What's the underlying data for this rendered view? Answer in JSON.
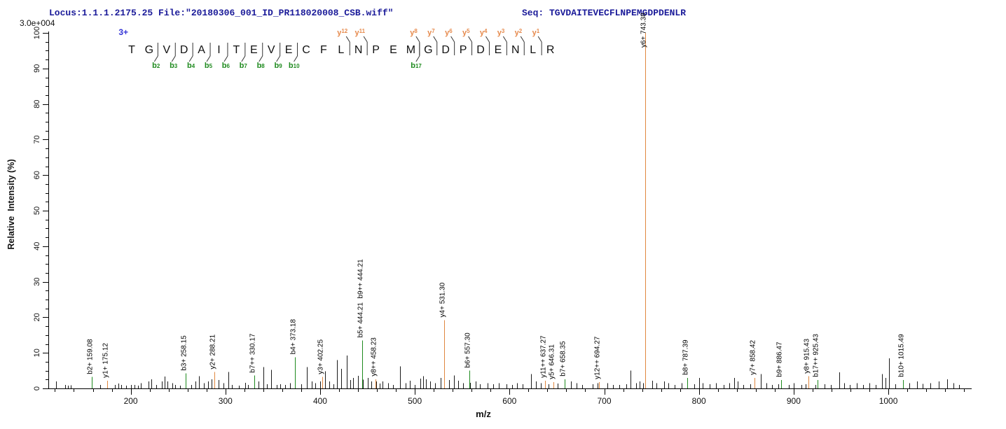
{
  "header": {
    "locus_file": "Locus:1.1.1.2175.25 File:\"20180306_001_ID_PR118020008_CSB.wiff\"",
    "seq_label": "Seq:",
    "seq_value": "TGVDAITEVECFLNPEMGDPDENLR"
  },
  "y_axis": {
    "max_intensity_label": "3.0e+004"
  },
  "peptide": {
    "charge_label": "3+",
    "residues": [
      "T",
      "G",
      "V",
      "D",
      "A",
      "I",
      "T",
      "E",
      "V",
      "E",
      "C",
      "F",
      "L",
      "N",
      "P",
      "E",
      "M",
      "G",
      "D",
      "P",
      "D",
      "E",
      "N",
      "L",
      "R"
    ],
    "b_ions": [
      2,
      3,
      4,
      5,
      6,
      7,
      8,
      9,
      10,
      17
    ],
    "y_ions": [
      12,
      11,
      8,
      7,
      6,
      5,
      4,
      3,
      2,
      1
    ]
  },
  "colors": {
    "b_ion": "#1E8A1E",
    "y_ion": "#E0873F",
    "peak_black": "#1a1a1a",
    "header_blue": "#1a1a99",
    "charge_blue": "#3434d6"
  },
  "chart_data": {
    "type": "bar",
    "subtype": "ms2-stick-spectrum",
    "xlabel": "m/z",
    "ylabel": "Relative  Intensity (%)",
    "xlim": [
      113,
      1088
    ],
    "ylim": [
      0,
      100
    ],
    "x_major_ticks": [
      200,
      300,
      400,
      500,
      600,
      700,
      800,
      900,
      1000
    ],
    "x_minor_step": 20,
    "y_major_ticks": [
      0,
      10,
      20,
      30,
      40,
      50,
      60,
      70,
      80,
      90,
      100
    ],
    "y_minor_step": 2.5,
    "legend": "none",
    "annotated_peaks": [
      {
        "label": "b2+ 159.08",
        "mz": 159.08,
        "intensity_pct": 3.2,
        "series": "b"
      },
      {
        "label": "y1+ 175.12",
        "mz": 175.12,
        "intensity_pct": 2.2,
        "series": "y"
      },
      {
        "label": "b3+ 258.15",
        "mz": 258.15,
        "intensity_pct": 4.2,
        "series": "b"
      },
      {
        "label": "y2+ 288.21",
        "mz": 288.21,
        "intensity_pct": 4.6,
        "series": "y"
      },
      {
        "label": "b7++ 330.17",
        "mz": 330.17,
        "intensity_pct": 3.6,
        "series": "b"
      },
      {
        "label": "b4+ 373.18",
        "mz": 373.18,
        "intensity_pct": 8.8,
        "series": "b"
      },
      {
        "label": "y3+ 402.25",
        "mz": 402.25,
        "intensity_pct": 3.2,
        "series": "y"
      },
      {
        "label": "b5+ 444.21  b9++ 444.21",
        "mz": 444.21,
        "intensity_pct": 13.5,
        "series": "b"
      },
      {
        "label": "y8++ 458.23",
        "mz": 458.23,
        "intensity_pct": 2.6,
        "series": "y"
      },
      {
        "label": "y4+ 531.30",
        "mz": 531.3,
        "intensity_pct": 19.2,
        "series": "y"
      },
      {
        "label": "b6+ 557.30",
        "mz": 557.3,
        "intensity_pct": 5.0,
        "series": "b"
      },
      {
        "label": "y11++ 637.27",
        "mz": 637.27,
        "intensity_pct": 2.2,
        "series": "y"
      },
      {
        "label": "y5+ 646.31",
        "mz": 646.31,
        "intensity_pct": 1.8,
        "series": "y"
      },
      {
        "label": "b7+ 658.35",
        "mz": 658.35,
        "intensity_pct": 2.6,
        "series": "b"
      },
      {
        "label": "y12++ 694.27",
        "mz": 694.27,
        "intensity_pct": 1.8,
        "series": "y"
      },
      {
        "label": "y6+ 743.38",
        "mz": 743.38,
        "intensity_pct": 100,
        "series": "y"
      },
      {
        "label": "b8+ 787.39",
        "mz": 787.39,
        "intensity_pct": 3.0,
        "series": "b"
      },
      {
        "label": "y7+ 858.42",
        "mz": 858.42,
        "intensity_pct": 3.0,
        "series": "y"
      },
      {
        "label": "b9+ 886.47",
        "mz": 886.47,
        "intensity_pct": 2.4,
        "series": "b"
      },
      {
        "label": "y8+ 915.43",
        "mz": 915.43,
        "intensity_pct": 3.4,
        "series": "y"
      },
      {
        "label": "b17++ 925.43",
        "mz": 925.43,
        "intensity_pct": 2.4,
        "series": "b"
      },
      {
        "label": "b10+ 1015.49",
        "mz": 1015.49,
        "intensity_pct": 2.4,
        "series": "b"
      }
    ],
    "background_peaks": [
      [
        121,
        2
      ],
      [
        131,
        1
      ],
      [
        134,
        0.8
      ],
      [
        137,
        0.9
      ],
      [
        168,
        1
      ],
      [
        183,
        1
      ],
      [
        187,
        1.4
      ],
      [
        190,
        1
      ],
      [
        195,
        0.8
      ],
      [
        200,
        1
      ],
      [
        204,
        1
      ],
      [
        208,
        0.8
      ],
      [
        211,
        1.5
      ],
      [
        219,
        2
      ],
      [
        222,
        2.6
      ],
      [
        227,
        1
      ],
      [
        233,
        2
      ],
      [
        236,
        3.3
      ],
      [
        239,
        2
      ],
      [
        244,
        1.5
      ],
      [
        247,
        1
      ],
      [
        252,
        0.8
      ],
      [
        264,
        1
      ],
      [
        268,
        2
      ],
      [
        272,
        3.4
      ],
      [
        277,
        1.5
      ],
      [
        282,
        2
      ],
      [
        285,
        2.6
      ],
      [
        293,
        2.4
      ],
      [
        298,
        1.5
      ],
      [
        303,
        4.6
      ],
      [
        307,
        1
      ],
      [
        314,
        0.8
      ],
      [
        321,
        1.6
      ],
      [
        324,
        1
      ],
      [
        335,
        2
      ],
      [
        340,
        6
      ],
      [
        344,
        1.2
      ],
      [
        348,
        5.2
      ],
      [
        354,
        1
      ],
      [
        358,
        1.2
      ],
      [
        363,
        1
      ],
      [
        368,
        1.5
      ],
      [
        380,
        1.2
      ],
      [
        386,
        6
      ],
      [
        391,
        2
      ],
      [
        395,
        1.5
      ],
      [
        400,
        2
      ],
      [
        405,
        4.8
      ],
      [
        410,
        2
      ],
      [
        414,
        1.2
      ],
      [
        418,
        8
      ],
      [
        422,
        5.5
      ],
      [
        428,
        9.3
      ],
      [
        432,
        2.4
      ],
      [
        435,
        3
      ],
      [
        440,
        3.5
      ],
      [
        445,
        2.5
      ],
      [
        450,
        3
      ],
      [
        454,
        2
      ],
      [
        459,
        2
      ],
      [
        463,
        1.4
      ],
      [
        466,
        2
      ],
      [
        472,
        1.5
      ],
      [
        477,
        1
      ],
      [
        484,
        6.2
      ],
      [
        490,
        1.5
      ],
      [
        495,
        2.2
      ],
      [
        500,
        1
      ],
      [
        506,
        2.8
      ],
      [
        509,
        3.4
      ],
      [
        512,
        2.6
      ],
      [
        516,
        2
      ],
      [
        521,
        1.5
      ],
      [
        527,
        3
      ],
      [
        531,
        2.8
      ],
      [
        536,
        2.4
      ],
      [
        541,
        3.6
      ],
      [
        546,
        2.2
      ],
      [
        551,
        1.5
      ],
      [
        558,
        1.6
      ],
      [
        564,
        2
      ],
      [
        569,
        1.2
      ],
      [
        577,
        1.5
      ],
      [
        583,
        1.2
      ],
      [
        589,
        1.5
      ],
      [
        597,
        1.2
      ],
      [
        603,
        1
      ],
      [
        608,
        1.5
      ],
      [
        614,
        1.2
      ],
      [
        623,
        4
      ],
      [
        628,
        2
      ],
      [
        633,
        1.5
      ],
      [
        641,
        1.2
      ],
      [
        651,
        1.4
      ],
      [
        665,
        2
      ],
      [
        671,
        1.5
      ],
      [
        677,
        1
      ],
      [
        688,
        1.2
      ],
      [
        693,
        1.5
      ],
      [
        703,
        1.5
      ],
      [
        709,
        1
      ],
      [
        716,
        1
      ],
      [
        723,
        1.2
      ],
      [
        728,
        5
      ],
      [
        734,
        1.5
      ],
      [
        737,
        2
      ],
      [
        741,
        1.5
      ],
      [
        751,
        2.2
      ],
      [
        755,
        1.5
      ],
      [
        763,
        2
      ],
      [
        768,
        1.5
      ],
      [
        774,
        1
      ],
      [
        782,
        1.5
      ],
      [
        795,
        1.2
      ],
      [
        800,
        3
      ],
      [
        804,
        1.5
      ],
      [
        811,
        1.2
      ],
      [
        818,
        1.5
      ],
      [
        826,
        1
      ],
      [
        832,
        1.5
      ],
      [
        837,
        3
      ],
      [
        841,
        2
      ],
      [
        847,
        1
      ],
      [
        854,
        1.2
      ],
      [
        865,
        4
      ],
      [
        871,
        1.5
      ],
      [
        877,
        1
      ],
      [
        884,
        1.2
      ],
      [
        895,
        1
      ],
      [
        900,
        1.5
      ],
      [
        908,
        1
      ],
      [
        913,
        1.2
      ],
      [
        923,
        1
      ],
      [
        933,
        1.2
      ],
      [
        939,
        1
      ],
      [
        948,
        4.5
      ],
      [
        953,
        1.5
      ],
      [
        959,
        1
      ],
      [
        967,
        1.5
      ],
      [
        973,
        1
      ],
      [
        980,
        1.5
      ],
      [
        987,
        1
      ],
      [
        993,
        4
      ],
      [
        997,
        3
      ],
      [
        1001,
        8.5
      ],
      [
        1007,
        1.2
      ],
      [
        1022,
        1.5
      ],
      [
        1030,
        2
      ],
      [
        1036,
        1.3
      ],
      [
        1044,
        1.5
      ],
      [
        1053,
        2
      ],
      [
        1062,
        2.6
      ],
      [
        1069,
        1.5
      ],
      [
        1075,
        1
      ]
    ]
  }
}
